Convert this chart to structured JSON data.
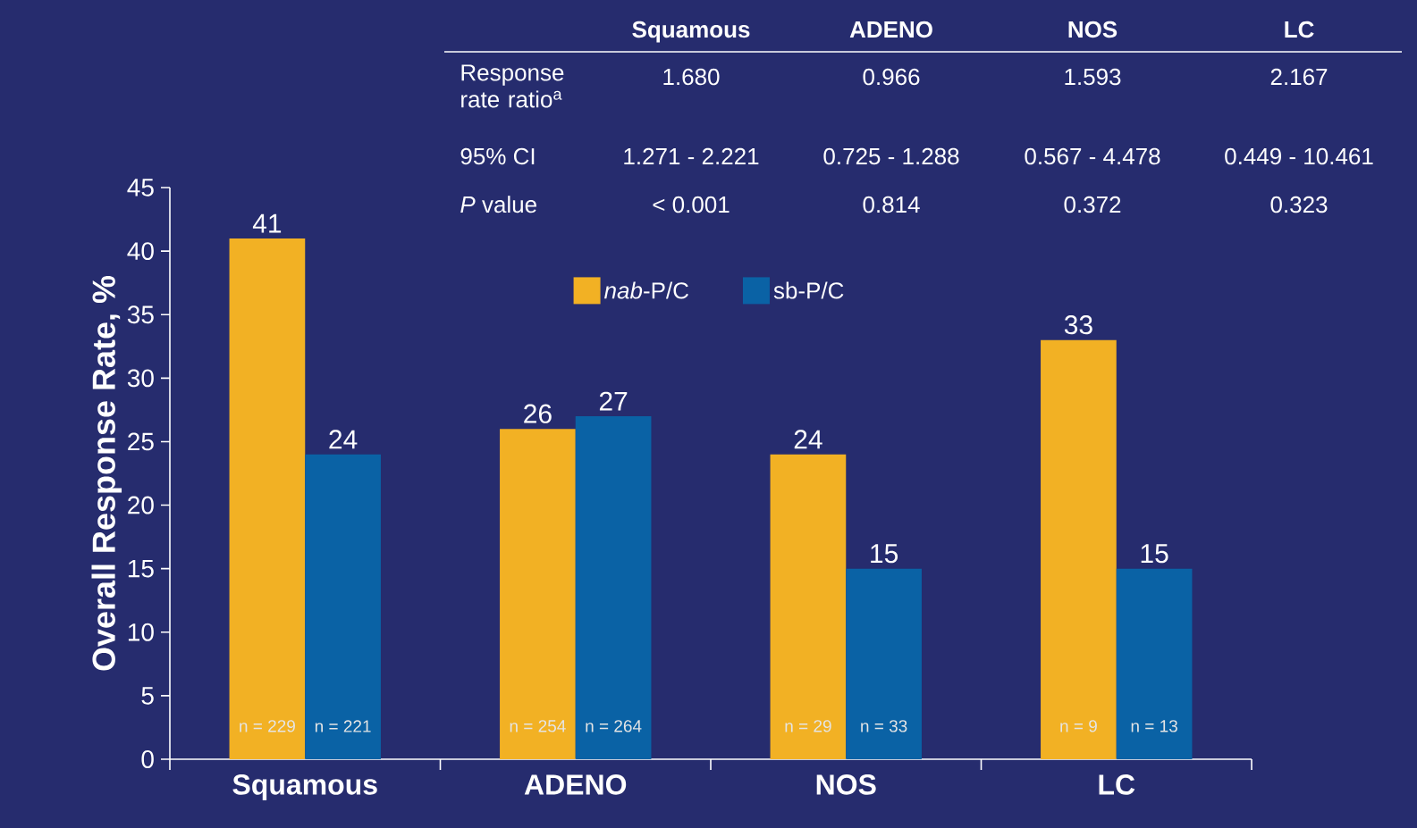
{
  "chart_data": {
    "type": "bar",
    "categories": [
      "Squamous",
      "ADENO",
      "NOS",
      "LC"
    ],
    "series": [
      {
        "name": "*nab*-P/C",
        "color": "#f2b124",
        "values": [
          41,
          26,
          24,
          33
        ]
      },
      {
        "name": "sb-P/C",
        "color": "#0a62a5",
        "values": [
          24,
          27,
          15,
          15
        ]
      }
    ],
    "ylabel": "Overall Response Rate, %",
    "ylim": [
      0,
      45
    ],
    "yticks": [
      0,
      5,
      10,
      15,
      20,
      25,
      30,
      35,
      40,
      45
    ],
    "data_labels": true,
    "legend": "top",
    "grid": false,
    "annotations": [
      "n = 229",
      "n = 221",
      "n = 254",
      "n = 264",
      "n = 29",
      "n = 33",
      "n = 9",
      "n = 13",
      "Squamous",
      "ADENO",
      "NOS",
      "LC",
      "Response rate ratio$^{a}$",
      "1.680",
      "0.966",
      "1.593",
      "2.167",
      "95% CI",
      "1.271 - 2.221",
      "0.725 - 1.288",
      "0.567 - 4.478",
      "0.449 - 10.461",
      "*P* value",
      "< 0.001",
      "0.814",
      "0.372",
      "0.323"
    ]
  }
}
